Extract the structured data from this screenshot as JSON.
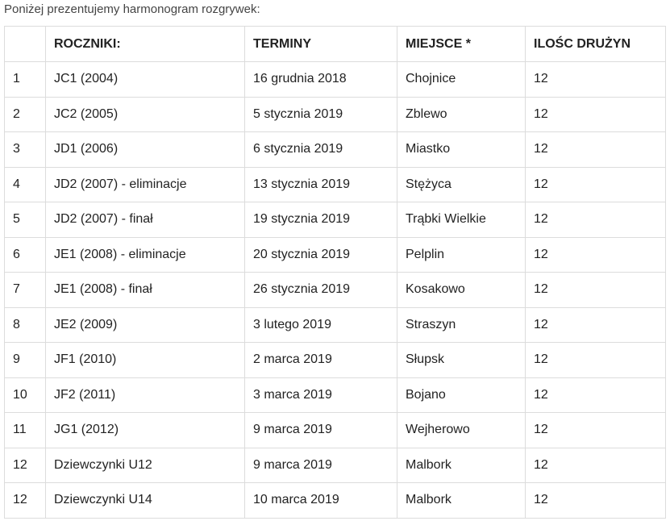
{
  "intro_text": "Poniżej prezentujemy harmonogram rozgrywek:",
  "table": {
    "headers": [
      "",
      "ROCZNIKI:",
      "TERMINY",
      "MIEJSCE *",
      "ILOŚC DRUŻYN"
    ],
    "rows": [
      [
        "1",
        "JC1 (2004)",
        "16 grudnia 2018",
        "Chojnice",
        "12"
      ],
      [
        "2",
        "JC2 (2005)",
        "5 stycznia 2019",
        "Zblewo",
        "12"
      ],
      [
        "3",
        "JD1 (2006)",
        "6 stycznia 2019",
        "Miastko",
        "12"
      ],
      [
        "4",
        "JD2 (2007) - eliminacje",
        "13 stycznia 2019",
        "Stężyca",
        "12"
      ],
      [
        "5",
        "JD2 (2007) - finał",
        "19 stycznia 2019",
        "Trąbki Wielkie",
        "12"
      ],
      [
        "6",
        "JE1 (2008) - eliminacje",
        "20 stycznia 2019",
        "Pelplin",
        "12"
      ],
      [
        "7",
        "JE1 (2008) - finał",
        "26 stycznia 2019",
        "Kosakowo",
        "12"
      ],
      [
        "8",
        "JE2 (2009)",
        "3 lutego 2019",
        "Straszyn",
        "12"
      ],
      [
        "9",
        "JF1 (2010)",
        "2 marca 2019",
        "Słupsk",
        "12"
      ],
      [
        "10",
        "JF2 (2011)",
        "3 marca 2019",
        "Bojano",
        "12"
      ],
      [
        "11",
        "JG1 (2012)",
        "9 marca 2019",
        "Wejherowo",
        "12"
      ],
      [
        "12",
        "Dziewczynki U12",
        "9 marca 2019",
        "Malbork",
        "12"
      ],
      [
        "12",
        "Dziewczynki U14",
        "10 marca 2019",
        "Malbork",
        "12"
      ]
    ]
  }
}
